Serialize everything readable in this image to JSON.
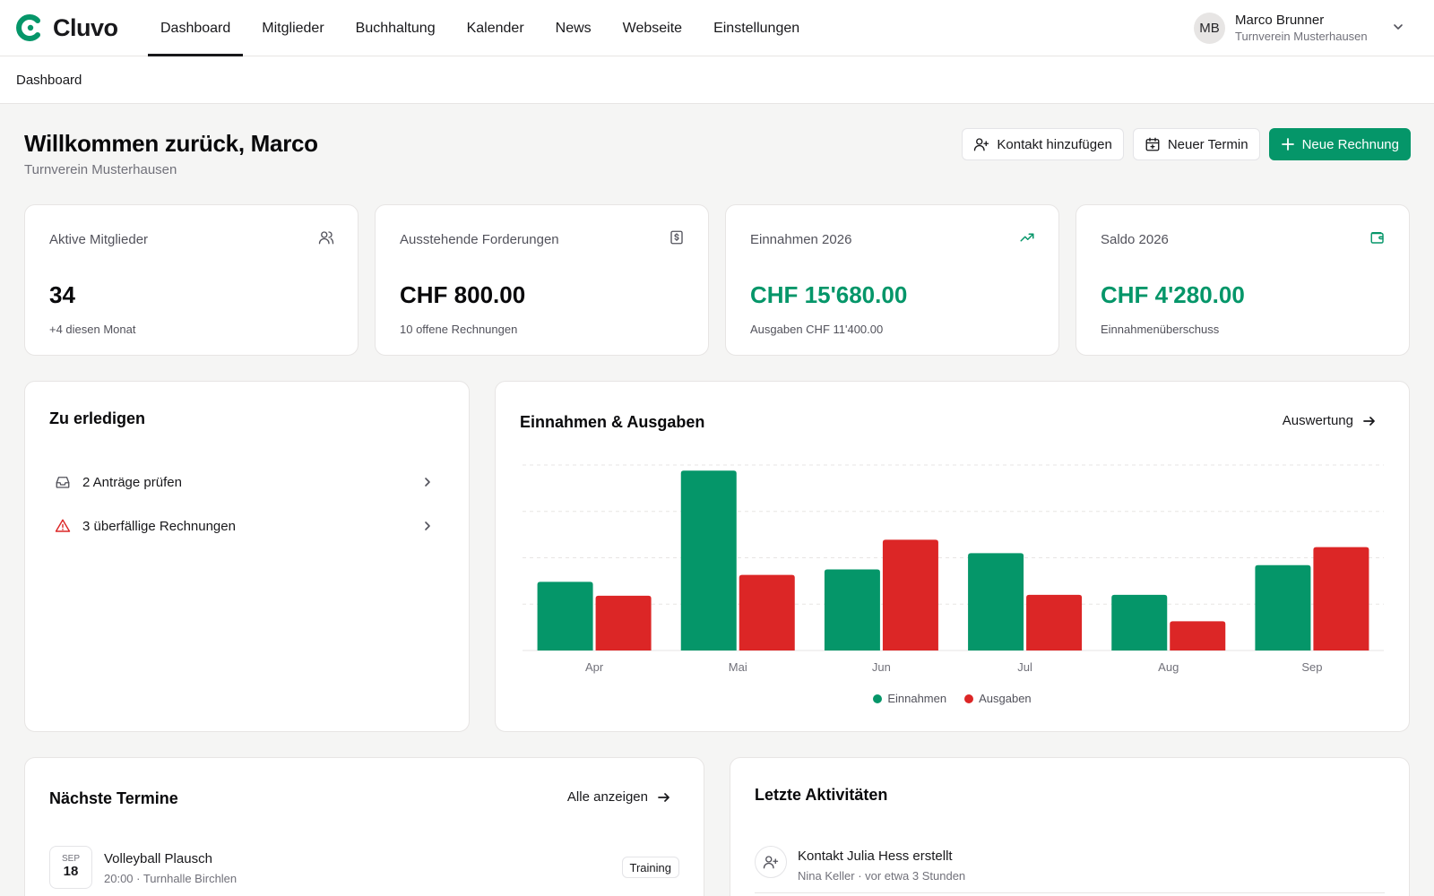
{
  "brand": {
    "name": "Cluvo",
    "accent": "#059669",
    "danger": "#dc2626"
  },
  "nav": {
    "items": [
      {
        "label": "Dashboard",
        "active": true
      },
      {
        "label": "Mitglieder"
      },
      {
        "label": "Buchhaltung"
      },
      {
        "label": "Kalender"
      },
      {
        "label": "News"
      },
      {
        "label": "Webseite"
      },
      {
        "label": "Einstellungen"
      }
    ]
  },
  "user": {
    "initials": "MB",
    "name": "Marco Brunner",
    "org": "Turnverein Musterhausen",
    "icon": "chevron-down-icon"
  },
  "breadcrumb": "Dashboard",
  "header": {
    "title": "Willkommen zurück, Marco",
    "subtitle": "Turnverein Musterhausen",
    "actions": {
      "add_contact": "Kontakt hinzufügen",
      "new_event": "Neuer Termin",
      "new_invoice": "Neue Rechnung"
    }
  },
  "stats": [
    {
      "label": "Aktive Mitglieder",
      "value": "34",
      "sub": "+4 diesen Monat",
      "icon": "users-icon"
    },
    {
      "label": "Ausstehende Forderungen",
      "value": "CHF 800.00",
      "sub": "10 offene Rechnungen",
      "icon": "receipt-icon"
    },
    {
      "label": "Einnahmen 2026",
      "value": "CHF 15'680.00",
      "sub": "Ausgaben CHF 11'400.00",
      "icon": "trending-up-icon"
    },
    {
      "label": "Saldo 2026",
      "value": "CHF 4'280.00",
      "sub": "Einnahmenüberschuss",
      "icon": "wallet-icon"
    }
  ],
  "todo": {
    "title": "Zu erledigen",
    "items": [
      {
        "label": "2 Anträge prüfen",
        "icon": "inbox-icon"
      },
      {
        "label": "3 überfällige Rechnungen",
        "icon": "alert-triangle-icon"
      }
    ]
  },
  "chart_card": {
    "title": "Einnahmen & Ausgaben",
    "link": "Auswertung"
  },
  "chart_data": {
    "type": "bar",
    "categories": [
      "Apr",
      "Mai",
      "Jun",
      "Jul",
      "Aug",
      "Sep"
    ],
    "series": [
      {
        "name": "Einnahmen",
        "color": "#059669",
        "values": [
          1480,
          3880,
          1750,
          2100,
          1200,
          1840
        ]
      },
      {
        "name": "Ausgaben",
        "color": "#dc2626",
        "values": [
          1180,
          1630,
          2390,
          1200,
          630,
          2230
        ]
      }
    ],
    "ylim": [
      0,
      4000
    ],
    "grid": true,
    "legend": "bottom-center"
  },
  "events": {
    "title": "Nächste Termine",
    "link": "Alle anzeigen",
    "items": [
      {
        "month": "SEP",
        "day": "18",
        "title": "Volleyball Plausch",
        "meta": "20:00 · Turnhalle Birchlen",
        "badge": "Training"
      }
    ]
  },
  "activities": {
    "title": "Letzte Aktivitäten",
    "items": [
      {
        "title": "Kontakt Julia Hess erstellt",
        "meta": "Nina Keller · vor etwa 3 Stunden",
        "icon": "user-plus-icon"
      }
    ]
  }
}
